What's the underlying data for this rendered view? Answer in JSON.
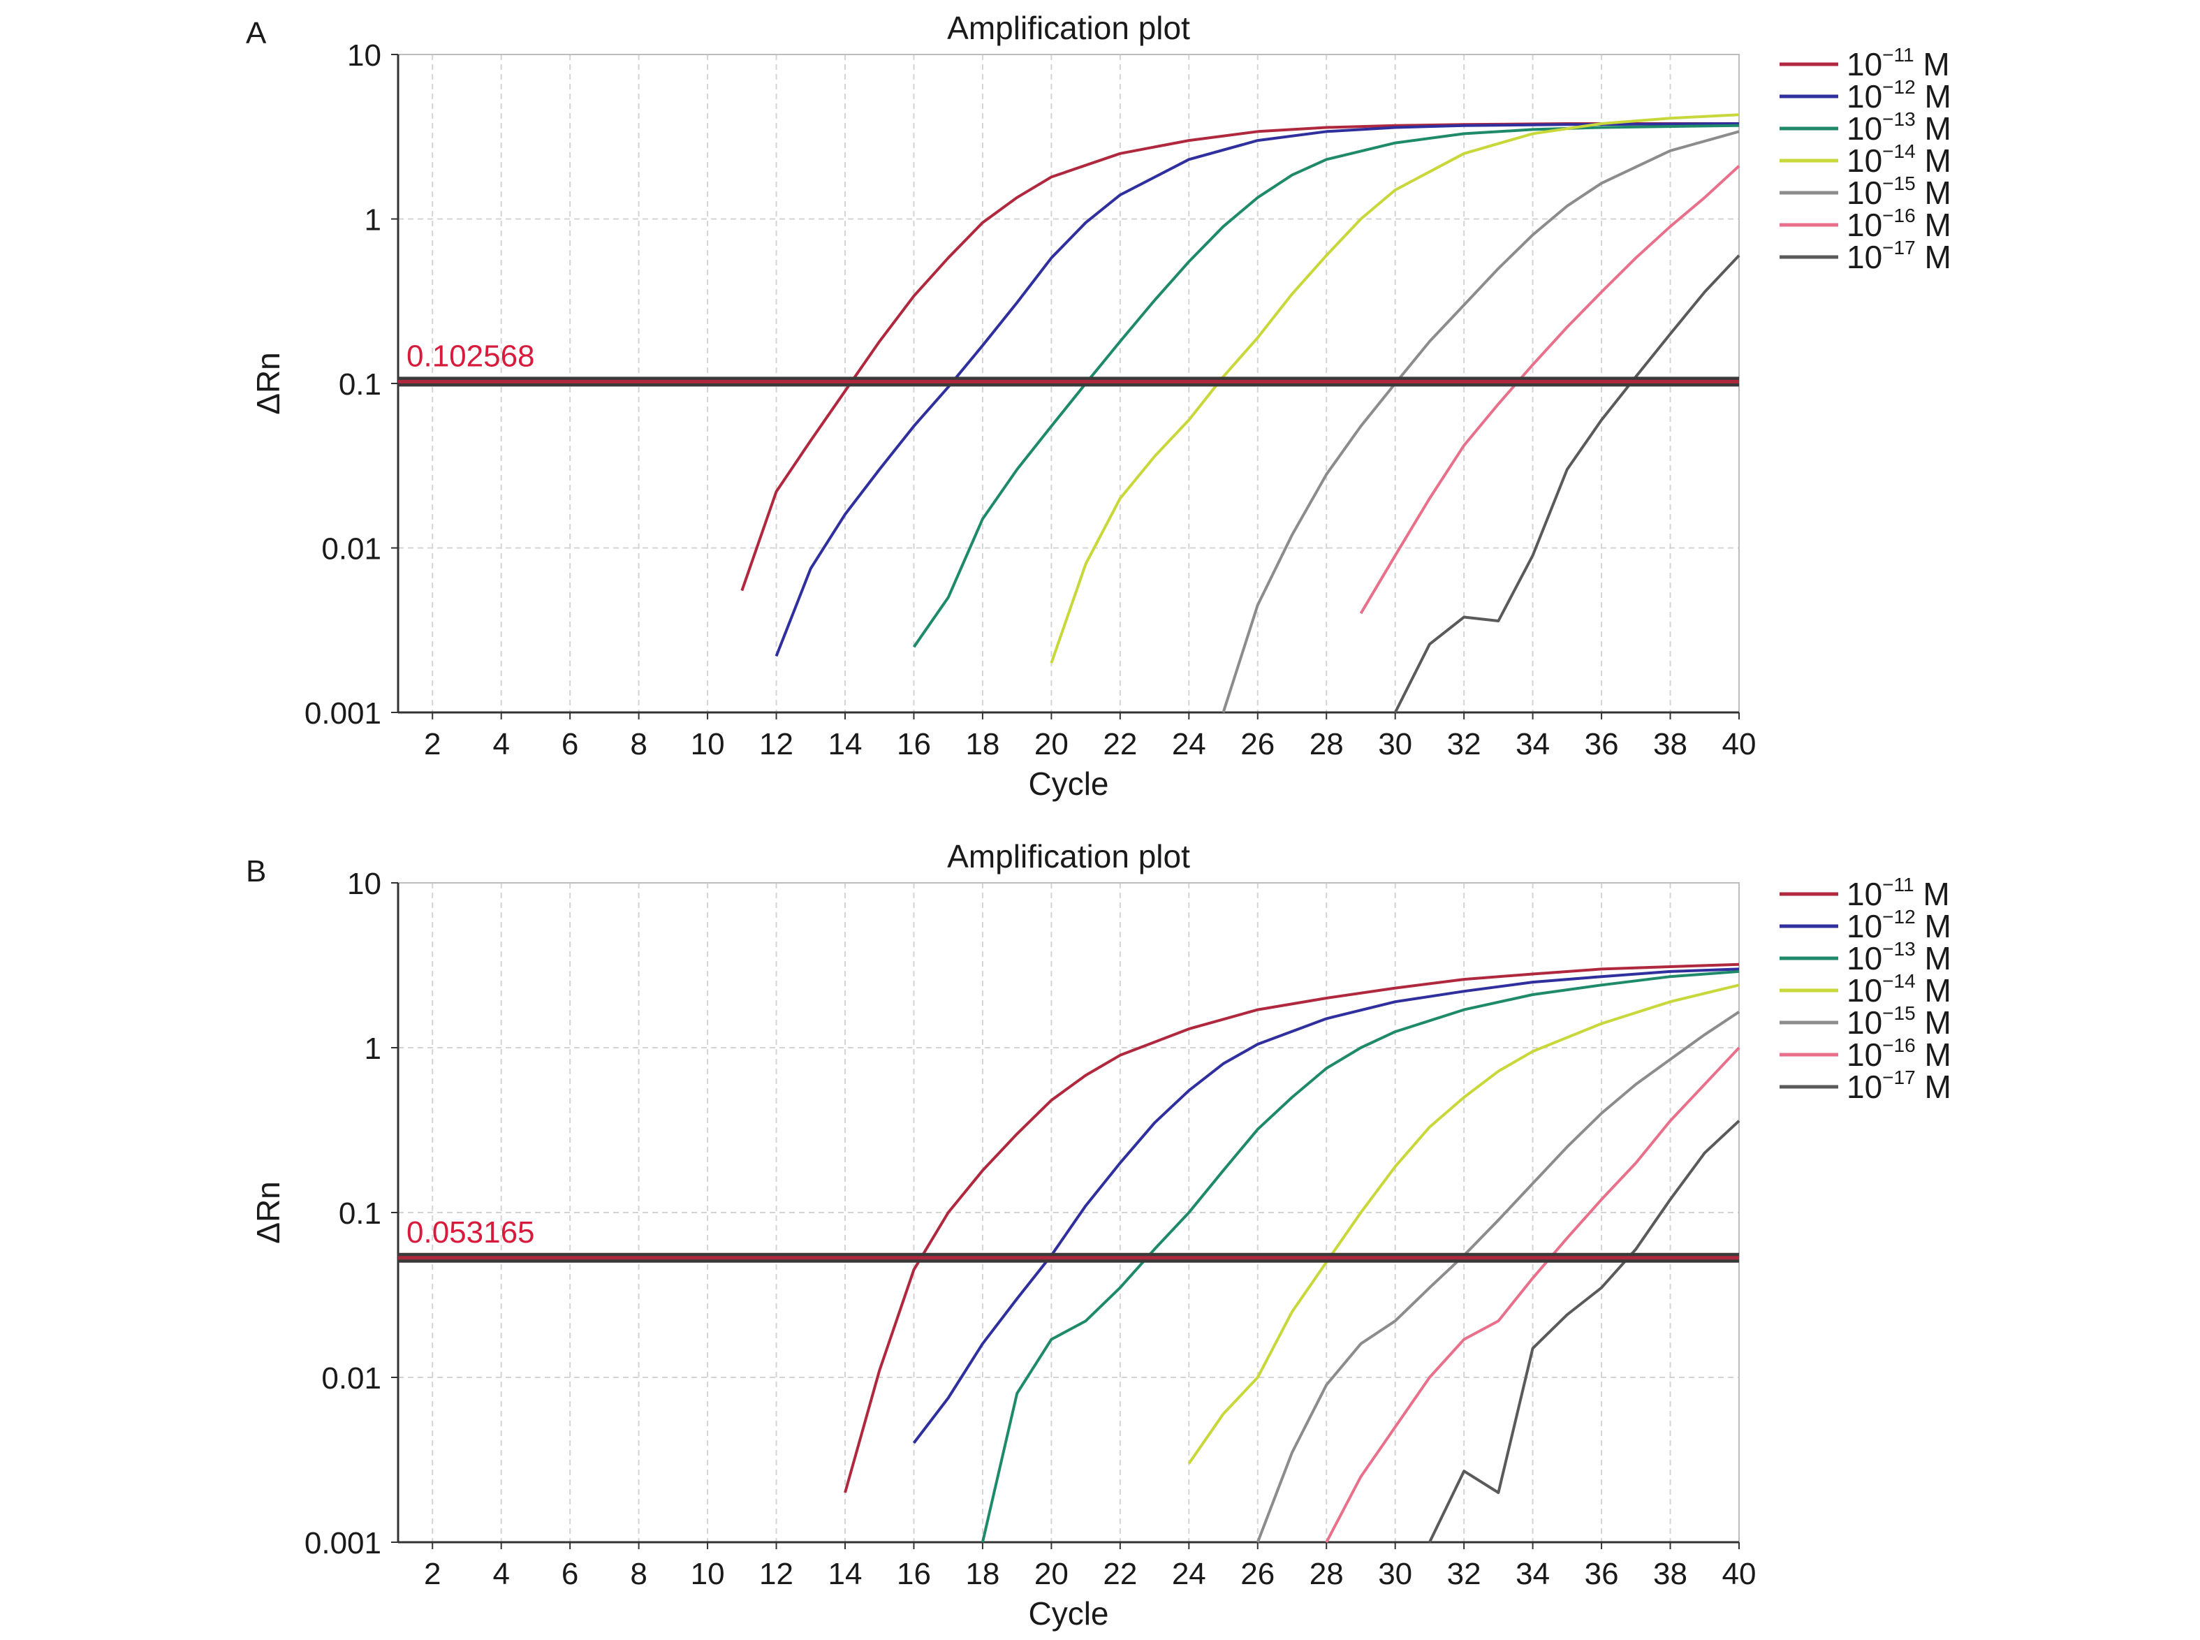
{
  "colors": {
    "1e-11": "#b0283e",
    "1e-12": "#2f2f9e",
    "1e-13": "#1f8a6a",
    "1e-14": "#c8d83a",
    "1e-15": "#8c8c8c",
    "1e-16": "#e8708a",
    "1e-17": "#5a5a5a",
    "threshold": "#b0283e",
    "threshold_label": "#d81b3c"
  },
  "chart_data": [
    {
      "panel": "A",
      "type": "line",
      "title": "Amplification plot",
      "xlabel": "Cycle",
      "ylabel": "ΔRn",
      "y_scale": "log",
      "xlim": [
        1,
        40
      ],
      "ylim": [
        0.001,
        10
      ],
      "x_ticks": [
        2,
        4,
        6,
        8,
        10,
        12,
        14,
        16,
        18,
        20,
        22,
        24,
        26,
        28,
        30,
        32,
        34,
        36,
        38,
        40
      ],
      "y_ticks": [
        "0.001",
        "0.01",
        "0.1",
        "1",
        "10"
      ],
      "grid": "dashed",
      "threshold": 0.102568,
      "threshold_label": "0.102568",
      "legend_position": "right",
      "series": [
        {
          "name": "10",
          "exp": "−11",
          "unit": "M",
          "color_key": "1e-11",
          "x": [
            11,
            12,
            13,
            14,
            15,
            16,
            17,
            18,
            19,
            20,
            22,
            24,
            26,
            28,
            30,
            32,
            35,
            40
          ],
          "y": [
            0.0055,
            0.022,
            0.045,
            0.09,
            0.18,
            0.34,
            0.58,
            0.95,
            1.35,
            1.8,
            2.5,
            3.0,
            3.4,
            3.6,
            3.7,
            3.75,
            3.8,
            3.8
          ]
        },
        {
          "name": "10",
          "exp": "−12",
          "unit": "M",
          "color_key": "1e-12",
          "x": [
            12,
            13,
            14,
            15,
            16,
            17,
            18,
            19,
            20,
            21,
            22,
            24,
            26,
            28,
            30,
            32,
            35,
            40
          ],
          "y": [
            0.0022,
            0.0075,
            0.016,
            0.03,
            0.055,
            0.095,
            0.17,
            0.31,
            0.58,
            0.95,
            1.4,
            2.3,
            3.0,
            3.4,
            3.6,
            3.7,
            3.75,
            3.8
          ]
        },
        {
          "name": "10",
          "exp": "−13",
          "unit": "M",
          "color_key": "1e-13",
          "x": [
            16,
            17,
            18,
            19,
            20,
            21,
            22,
            23,
            24,
            25,
            26,
            27,
            28,
            30,
            32,
            34,
            36,
            40
          ],
          "y": [
            0.0025,
            0.005,
            0.015,
            0.03,
            0.055,
            0.1,
            0.18,
            0.32,
            0.55,
            0.9,
            1.35,
            1.85,
            2.3,
            2.9,
            3.3,
            3.5,
            3.6,
            3.7
          ]
        },
        {
          "name": "10",
          "exp": "−14",
          "unit": "M",
          "color_key": "1e-14",
          "x": [
            20,
            21,
            22,
            23,
            24,
            25,
            26,
            27,
            28,
            29,
            30,
            32,
            34,
            36,
            38,
            40
          ],
          "y": [
            0.002,
            0.008,
            0.02,
            0.036,
            0.06,
            0.11,
            0.19,
            0.35,
            0.6,
            1.0,
            1.5,
            2.5,
            3.3,
            3.8,
            4.1,
            4.3
          ]
        },
        {
          "name": "10",
          "exp": "−15",
          "unit": "M",
          "color_key": "1e-15",
          "x": [
            25,
            26,
            27,
            28,
            29,
            30,
            31,
            32,
            33,
            34,
            35,
            36,
            38,
            40
          ],
          "y": [
            0.001,
            0.0045,
            0.012,
            0.028,
            0.055,
            0.1,
            0.18,
            0.3,
            0.5,
            0.8,
            1.2,
            1.65,
            2.6,
            3.4
          ]
        },
        {
          "name": "10",
          "exp": "−16",
          "unit": "M",
          "color_key": "1e-16",
          "x": [
            29,
            30,
            31,
            32,
            33,
            34,
            35,
            36,
            37,
            38,
            39,
            40
          ],
          "y": [
            0.004,
            0.009,
            0.02,
            0.042,
            0.075,
            0.13,
            0.22,
            0.36,
            0.58,
            0.9,
            1.35,
            2.1
          ]
        },
        {
          "name": "10",
          "exp": "−17",
          "unit": "M",
          "color_key": "1e-17",
          "x": [
            30,
            31,
            32,
            33,
            34,
            35,
            36,
            37,
            38,
            39,
            40
          ],
          "y": [
            0.001,
            0.0026,
            0.0038,
            0.0036,
            0.009,
            0.03,
            0.06,
            0.11,
            0.2,
            0.36,
            0.6
          ]
        }
      ]
    },
    {
      "panel": "B",
      "type": "line",
      "title": "Amplification plot",
      "xlabel": "Cycle",
      "ylabel": "ΔRn",
      "y_scale": "log",
      "xlim": [
        1,
        40
      ],
      "ylim": [
        0.001,
        10
      ],
      "x_ticks": [
        2,
        4,
        6,
        8,
        10,
        12,
        14,
        16,
        18,
        20,
        22,
        24,
        26,
        28,
        30,
        32,
        34,
        36,
        38,
        40
      ],
      "y_ticks": [
        "0.001",
        "0.01",
        "0.1",
        "1",
        "10"
      ],
      "grid": "dashed",
      "threshold": 0.053165,
      "threshold_label": "0.053165",
      "legend_position": "right",
      "series": [
        {
          "name": "10",
          "exp": "−11",
          "unit": "M",
          "color_key": "1e-11",
          "x": [
            14,
            15,
            16,
            17,
            18,
            19,
            20,
            21,
            22,
            24,
            26,
            28,
            30,
            32,
            34,
            36,
            38,
            40
          ],
          "y": [
            0.002,
            0.011,
            0.045,
            0.1,
            0.18,
            0.3,
            0.48,
            0.68,
            0.9,
            1.3,
            1.7,
            2.0,
            2.3,
            2.6,
            2.8,
            3.0,
            3.1,
            3.2
          ]
        },
        {
          "name": "10",
          "exp": "−12",
          "unit": "M",
          "color_key": "1e-12",
          "x": [
            16,
            17,
            18,
            19,
            20,
            21,
            22,
            23,
            24,
            25,
            26,
            28,
            30,
            32,
            34,
            36,
            38,
            40
          ],
          "y": [
            0.004,
            0.0075,
            0.016,
            0.03,
            0.055,
            0.11,
            0.2,
            0.35,
            0.55,
            0.8,
            1.05,
            1.5,
            1.9,
            2.2,
            2.5,
            2.7,
            2.9,
            3.0
          ]
        },
        {
          "name": "10",
          "exp": "−13",
          "unit": "M",
          "color_key": "1e-13",
          "x": [
            18,
            19,
            20,
            21,
            22,
            23,
            24,
            25,
            26,
            27,
            28,
            29,
            30,
            32,
            34,
            36,
            38,
            40
          ],
          "y": [
            0.001,
            0.008,
            0.017,
            0.022,
            0.035,
            0.06,
            0.1,
            0.18,
            0.32,
            0.5,
            0.75,
            1.0,
            1.25,
            1.7,
            2.1,
            2.4,
            2.7,
            2.9
          ]
        },
        {
          "name": "10",
          "exp": "−14",
          "unit": "M",
          "color_key": "1e-14",
          "x": [
            24,
            25,
            26,
            27,
            28,
            29,
            30,
            31,
            32,
            33,
            34,
            36,
            38,
            40
          ],
          "y": [
            0.003,
            0.006,
            0.01,
            0.025,
            0.05,
            0.1,
            0.19,
            0.33,
            0.5,
            0.72,
            0.95,
            1.4,
            1.9,
            2.4
          ]
        },
        {
          "name": "10",
          "exp": "−15",
          "unit": "M",
          "color_key": "1e-15",
          "x": [
            26,
            27,
            28,
            29,
            30,
            31,
            32,
            33,
            34,
            35,
            36,
            37,
            38,
            39,
            40
          ],
          "y": [
            0.001,
            0.0035,
            0.009,
            0.016,
            0.022,
            0.035,
            0.055,
            0.09,
            0.15,
            0.25,
            0.4,
            0.6,
            0.85,
            1.2,
            1.65
          ]
        },
        {
          "name": "10",
          "exp": "−16",
          "unit": "M",
          "color_key": "1e-16",
          "x": [
            28,
            29,
            30,
            31,
            32,
            33,
            34,
            35,
            36,
            37,
            38,
            39,
            40
          ],
          "y": [
            0.001,
            0.0025,
            0.005,
            0.01,
            0.017,
            0.022,
            0.04,
            0.07,
            0.12,
            0.2,
            0.36,
            0.6,
            1.0
          ]
        },
        {
          "name": "10",
          "exp": "−17",
          "unit": "M",
          "color_key": "1e-17",
          "x": [
            31,
            32,
            33,
            34,
            35,
            36,
            37,
            38,
            39,
            40
          ],
          "y": [
            0.001,
            0.0027,
            0.002,
            0.015,
            0.024,
            0.035,
            0.06,
            0.12,
            0.23,
            0.36
          ]
        }
      ]
    }
  ]
}
